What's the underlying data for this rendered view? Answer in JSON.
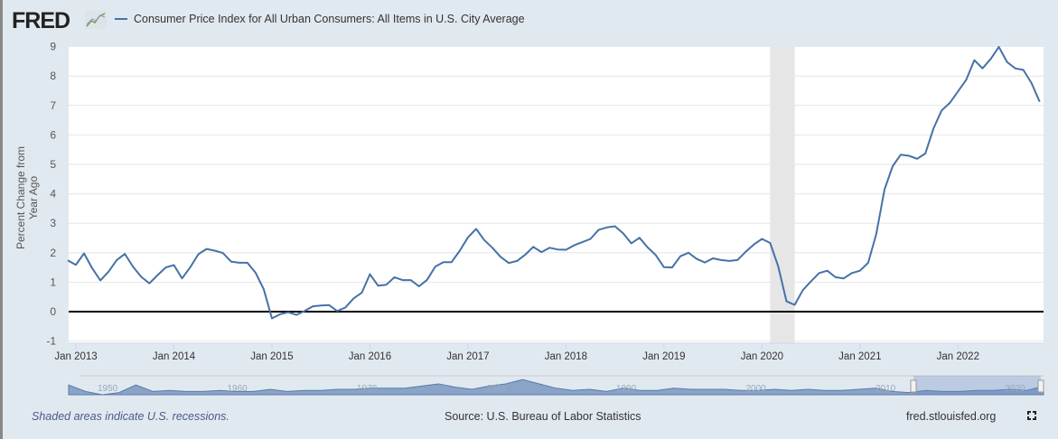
{
  "header": {
    "logo": "FRED",
    "legend": "Consumer Price Index for All Urban Consumers: All Items in U.S. City Average"
  },
  "footer": {
    "recession_note": "Shaded areas indicate U.S. recessions.",
    "source": "Source: U.S. Bureau of Labor Statistics",
    "site": "fred.stlouisfed.org"
  },
  "colors": {
    "series": "#4572a7",
    "recession": "#e6e6e6",
    "navigator": "#8aa4c8"
  },
  "navigator": {
    "labels": [
      "1950",
      "1960",
      "1970",
      "1980",
      "1990",
      "2000",
      "2010",
      "2020"
    ]
  },
  "chart_data": {
    "type": "line",
    "ylabel": "Percent Change from Year Ago",
    "ylim": [
      -1,
      9
    ],
    "yticks": [
      "-1",
      "0",
      "1",
      "2",
      "3",
      "4",
      "5",
      "6",
      "7",
      "8",
      "9"
    ],
    "xticks": [
      "Jan 2013",
      "Jan 2014",
      "Jan 2015",
      "Jan 2016",
      "Jan 2017",
      "Jan 2018",
      "Jan 2019",
      "Jan 2020",
      "Jan 2021",
      "Jan 2022"
    ],
    "x_start": "2012-12",
    "x_end": "2022-11",
    "frequency": "monthly",
    "recessions": [
      [
        "2020-02",
        "2020-04"
      ]
    ],
    "grid": true,
    "series": [
      {
        "name": "Consumer Price Index for All Urban Consumers: All Items in U.S. City Average",
        "values": [
          1.74,
          1.59,
          1.98,
          1.47,
          1.06,
          1.36,
          1.75,
          1.96,
          1.52,
          1.18,
          0.96,
          1.24,
          1.5,
          1.58,
          1.13,
          1.51,
          1.95,
          2.13,
          2.07,
          1.99,
          1.7,
          1.66,
          1.66,
          1.32,
          0.76,
          -0.23,
          -0.09,
          -0.02,
          -0.11,
          0.02,
          0.18,
          0.21,
          0.22,
          0.02,
          0.14,
          0.45,
          0.64,
          1.27,
          0.88,
          0.91,
          1.17,
          1.07,
          1.07,
          0.86,
          1.08,
          1.53,
          1.68,
          1.68,
          2.07,
          2.52,
          2.81,
          2.43,
          2.17,
          1.86,
          1.65,
          1.72,
          1.93,
          2.2,
          2.02,
          2.17,
          2.11,
          2.1,
          2.25,
          2.36,
          2.47,
          2.78,
          2.86,
          2.9,
          2.66,
          2.32,
          2.51,
          2.18,
          1.92,
          1.51,
          1.5,
          1.88,
          2.0,
          1.79,
          1.67,
          1.81,
          1.75,
          1.72,
          1.75,
          2.03,
          2.28,
          2.47,
          2.33,
          1.53,
          0.35,
          0.23,
          0.73,
          1.03,
          1.31,
          1.39,
          1.17,
          1.13,
          1.31,
          1.39,
          1.66,
          2.64,
          4.15,
          4.94,
          5.33,
          5.29,
          5.19,
          5.37,
          6.22,
          6.83,
          7.09,
          7.48,
          7.87,
          8.54,
          8.26,
          8.58,
          8.99,
          8.48,
          8.26,
          8.21,
          7.76,
          7.13
        ]
      }
    ]
  }
}
